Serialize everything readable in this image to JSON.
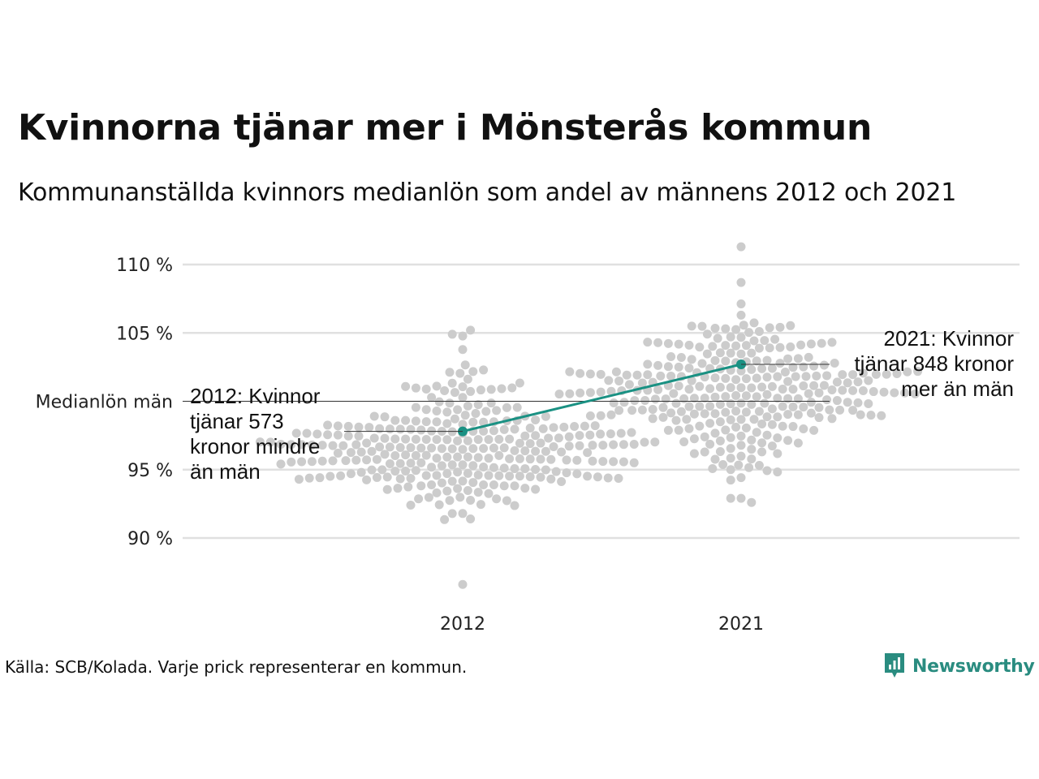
{
  "title": "Kvinnorna tjänar mer i Mönsterås kommun",
  "subtitle": "Kommunanställda kvinnors medianlön som andel av männens 2012 och 2021",
  "source": "Källa: SCB/Kolada. Varje prick representerar en kommun.",
  "logo": {
    "name": "Newsworthy",
    "color": "#2a8c80"
  },
  "chart_data": {
    "type": "scatter",
    "subtype": "beeswarm with highlighted series",
    "categories": [
      "2012",
      "2021"
    ],
    "y_ticks": [
      {
        "value": 90,
        "label": "90 %"
      },
      {
        "value": 95,
        "label": "95 %"
      },
      {
        "value": 105,
        "label": "105 %"
      },
      {
        "value": 110,
        "label": "110 %"
      }
    ],
    "reference_line": {
      "value": 100,
      "label": "Medianlön män"
    },
    "ylim": [
      86,
      112
    ],
    "grid": true,
    "colors": {
      "highlight": "#1a9183",
      "dots": "#cccccc",
      "grid": "#e0e0e0",
      "reference": "#333333"
    },
    "highlight": {
      "name": "Mönsterås",
      "values": [
        97.8,
        102.7
      ]
    },
    "distribution_summary": [
      {
        "year": "2012",
        "min": 86.6,
        "max": 105.2,
        "median": 96.5
      },
      {
        "year": "2021",
        "min": 92.6,
        "max": 111.3,
        "median": 101.0
      }
    ],
    "annotations": [
      {
        "year": "2012",
        "value": 97.8,
        "lines": [
          "2012: Kvinnor",
          "tjänar 573",
          "kronor mindre",
          "än män"
        ]
      },
      {
        "year": "2021",
        "value": 102.7,
        "lines": [
          "2021: Kvinnor",
          "tjänar 848 kronor",
          "mer än män"
        ]
      }
    ]
  }
}
